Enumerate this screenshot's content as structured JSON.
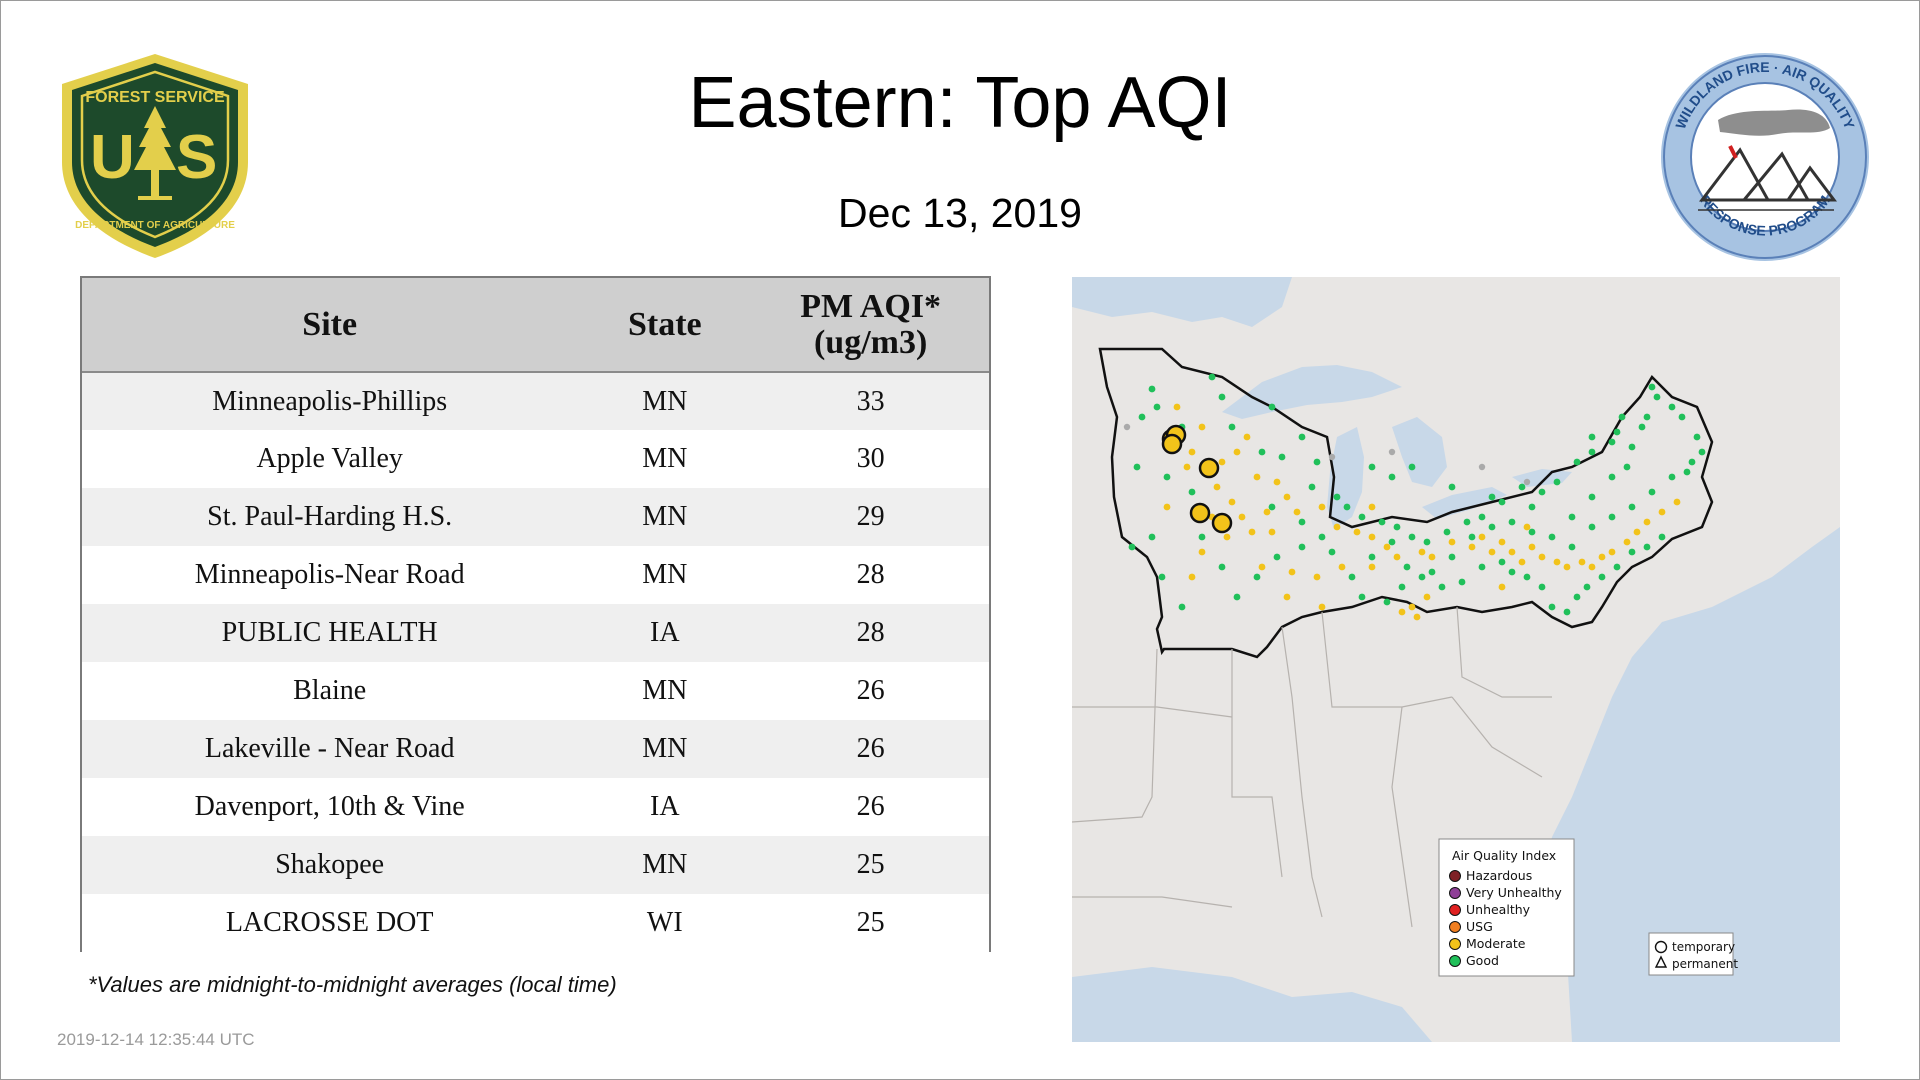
{
  "header": {
    "title": "Eastern: Top AQI",
    "date": "Dec 13, 2019"
  },
  "logos": {
    "left": {
      "name": "forest-service-shield",
      "text_top": "FOREST SERVICE",
      "text_bottom": "DEPARTMENT OF AGRICULTURE",
      "letters": "U S",
      "colors": {
        "green": "#1d4a2b",
        "gold": "#e3cf4b"
      }
    },
    "right": {
      "name": "wildland-fire-air-quality-badge",
      "text_top": "WILDLAND FIRE · AIR QUALITY",
      "text_bottom": "RESPONSE PROGRAM",
      "colors": {
        "ring": "#a7c3e2",
        "text": "#214d8a"
      }
    }
  },
  "table": {
    "headers": {
      "site": "Site",
      "state": "State",
      "pm_line1": "PM AQI*",
      "pm_line2": "(ug/m3)"
    },
    "rows": [
      {
        "site": "Minneapolis-Phillips",
        "state": "MN",
        "value": "33"
      },
      {
        "site": "Apple Valley",
        "state": "MN",
        "value": "30"
      },
      {
        "site": "St. Paul-Harding H.S.",
        "state": "MN",
        "value": "29"
      },
      {
        "site": "Minneapolis-Near Road",
        "state": "MN",
        "value": "28"
      },
      {
        "site": "PUBLIC HEALTH",
        "state": "IA",
        "value": "28"
      },
      {
        "site": "Blaine",
        "state": "MN",
        "value": "26"
      },
      {
        "site": "Lakeville - Near Road",
        "state": "MN",
        "value": "26"
      },
      {
        "site": "Davenport, 10th & Vine",
        "state": "IA",
        "value": "26"
      },
      {
        "site": "Shakopee",
        "state": "MN",
        "value": "25"
      },
      {
        "site": "LACROSSE DOT",
        "state": "WI",
        "value": "25"
      }
    ],
    "footnote": "*Values are midnight-to-midnight averages (local time)"
  },
  "timestamp": "2019-12-14 12:35:44 UTC",
  "map": {
    "colors": {
      "water": "#c8d8e8",
      "land": "#e8e6e4",
      "good": "#20c05a",
      "moderate": "#f2c31a",
      "moderate_stroke": "#7a5a00",
      "nodata": "#aaaaaa"
    },
    "legend": {
      "title": "Air Quality Index",
      "items": [
        {
          "label": "Hazardous",
          "color": "#7e2126"
        },
        {
          "label": "Very Unhealthy",
          "color": "#8f3f97"
        },
        {
          "label": "Unhealthy",
          "color": "#e02020"
        },
        {
          "label": "USG",
          "color": "#f07e20"
        },
        {
          "label": "Moderate",
          "color": "#f2c31a"
        },
        {
          "label": "Good",
          "color": "#20c05a"
        }
      ],
      "shapes": {
        "temporary": "temporary",
        "permanent": "permanent"
      }
    }
  }
}
